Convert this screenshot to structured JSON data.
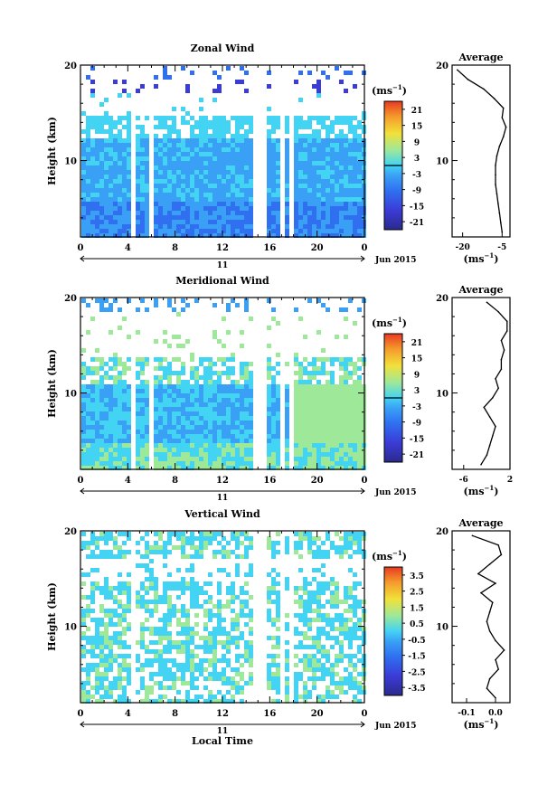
{
  "chart_data": [
    {
      "type": "heatmap",
      "title": "Zonal Wind",
      "ylabel": "Height (km)",
      "xlabel": "",
      "x_ticks": [
        "0",
        "4",
        "8",
        "12",
        "16",
        "20",
        "0"
      ],
      "y_ticks": [
        "20",
        "10"
      ],
      "xlim": [
        0,
        24
      ],
      "ylim": [
        2,
        20
      ],
      "date_label": "11",
      "month_label": "Jun 2015",
      "unit_label": "(ms",
      "unit_sup": "−1",
      "colorbar_ticks": [
        "21",
        "15",
        "9",
        "3",
        "-3",
        "-9",
        "-15",
        "-21"
      ],
      "colorbar_range": [
        -24,
        24
      ],
      "gaps_hours": [
        [
          4.0,
          4.6
        ],
        [
          5.7,
          6.1
        ],
        [
          14.4,
          15.4
        ],
        [
          16.8,
          17.2
        ],
        [
          17.6,
          18.0
        ]
      ],
      "profile": {
        "title": "Average",
        "ylabel": "",
        "x_ticks": [
          "-20",
          "-5"
        ],
        "y_ticks": [
          "20",
          "10"
        ],
        "xlim": [
          -24,
          -2
        ],
        "x_unit": "(ms",
        "x_unit_sup": "−1",
        "h": [
          2.5,
          3.5,
          4.5,
          5.5,
          6.5,
          7.5,
          8.5,
          9.5,
          10.5,
          11.5,
          12.5,
          13.5,
          14.5,
          15.5,
          16.5,
          17.5,
          18.5,
          19.5
        ],
        "v": [
          -5,
          -5.5,
          -6,
          -6.5,
          -7,
          -7.5,
          -7.5,
          -7.5,
          -7,
          -6,
          -4.5,
          -3.5,
          -5,
          -4.5,
          -8,
          -12,
          -18,
          -22
        ]
      }
    },
    {
      "type": "heatmap",
      "title": "Meridional Wind",
      "ylabel": "Height (km)",
      "xlabel": "",
      "x_ticks": [
        "0",
        "4",
        "8",
        "12",
        "16",
        "20",
        "0"
      ],
      "y_ticks": [
        "20",
        "10"
      ],
      "xlim": [
        0,
        24
      ],
      "ylim": [
        2,
        20
      ],
      "date_label": "11",
      "month_label": "Jun 2015",
      "unit_label": "(ms",
      "unit_sup": "−1",
      "colorbar_ticks": [
        "21",
        "15",
        "9",
        "3",
        "-3",
        "-9",
        "-15",
        "-21"
      ],
      "colorbar_range": [
        -24,
        24
      ],
      "gaps_hours": [
        [
          4.0,
          4.6
        ],
        [
          5.7,
          6.1
        ],
        [
          14.4,
          15.4
        ],
        [
          16.8,
          17.2
        ],
        [
          17.6,
          18.0
        ]
      ],
      "profile": {
        "title": "Average",
        "ylabel": "",
        "x_ticks": [
          "-6",
          "2"
        ],
        "y_ticks": [
          "20",
          "10"
        ],
        "xlim": [
          -8,
          2
        ],
        "x_unit": "(ms",
        "x_unit_sup": "−1",
        "h": [
          2.5,
          3.5,
          4.5,
          5.5,
          6.5,
          7.5,
          8.5,
          9.5,
          10.5,
          11.5,
          12.5,
          13.5,
          14.5,
          15.5,
          16.5,
          17.5,
          18.5,
          19.5
        ],
        "v": [
          -3,
          -2,
          -1.5,
          -1,
          -0.5,
          -1.5,
          -2.5,
          -1,
          0,
          -0.5,
          0.5,
          0.5,
          1,
          0.5,
          1.5,
          1.5,
          0,
          -2
        ]
      }
    },
    {
      "type": "heatmap",
      "title": "Vertical Wind",
      "ylabel": "Height (km)",
      "xlabel": "Local Time",
      "x_ticks": [
        "0",
        "4",
        "8",
        "12",
        "16",
        "20",
        "0"
      ],
      "y_ticks": [
        "20",
        "10"
      ],
      "xlim": [
        0,
        24
      ],
      "ylim": [
        2,
        20
      ],
      "date_label": "11",
      "month_label": "Jun 2015",
      "unit_label": "(ms",
      "unit_sup": "−1",
      "colorbar_ticks": [
        "3.5",
        "2.5",
        "1.5",
        "0.5",
        "-0.5",
        "-1.5",
        "-2.5",
        "-3.5"
      ],
      "colorbar_range": [
        -4,
        4
      ],
      "gaps_hours": [
        [
          4.0,
          4.6
        ],
        [
          14.4,
          15.4
        ],
        [
          16.8,
          17.2
        ],
        [
          17.6,
          18.0
        ]
      ],
      "profile": {
        "title": "Average",
        "ylabel": "",
        "x_ticks": [
          "-0.1",
          "0.0"
        ],
        "y_ticks": [
          "20",
          "10"
        ],
        "xlim": [
          -0.15,
          0.05
        ],
        "x_unit": "(ms",
        "x_unit_sup": "−1",
        "h": [
          2.5,
          3.5,
          4.5,
          5.5,
          6.5,
          7.5,
          8.5,
          9.5,
          10.5,
          11.5,
          12.5,
          13.5,
          14.5,
          15.5,
          16.5,
          17.5,
          18.5,
          19.5
        ],
        "v": [
          0.0,
          -0.03,
          -0.02,
          0.01,
          0.0,
          0.03,
          0.0,
          -0.02,
          -0.03,
          -0.02,
          -0.01,
          -0.05,
          0.0,
          -0.06,
          -0.02,
          0.02,
          0.01,
          -0.08
        ]
      }
    }
  ],
  "colors": {
    "scale": [
      "#2a2a8c",
      "#3b3bd6",
      "#2f6ff0",
      "#3aa0f5",
      "#43d3f3",
      "#9ee89a",
      "#f2e13a",
      "#f59b2c",
      "#e83a22"
    ]
  }
}
